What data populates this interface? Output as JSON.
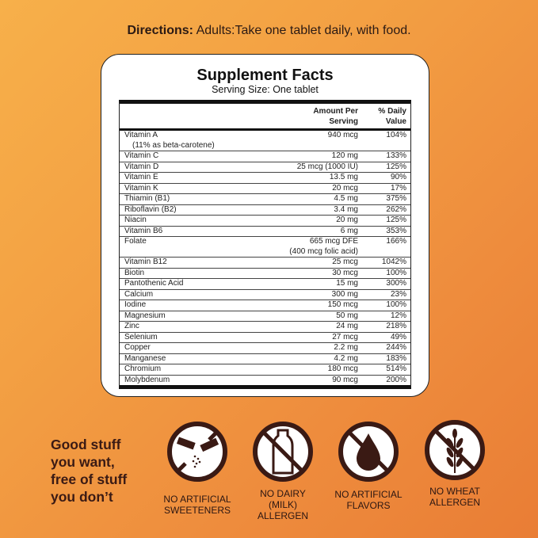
{
  "directions": {
    "label": "Directions:",
    "text": " Adults:Take one tablet daily, with food."
  },
  "facts": {
    "title": "Supplement Facts",
    "serving": "Serving Size: One tablet",
    "headers": {
      "amount_1": "Amount Per",
      "amount_2": "Serving",
      "dv_1": "% Daily",
      "dv_2": "Value"
    },
    "rows": [
      {
        "name": "Vitamin A",
        "sub": "(11% as beta-carotene)",
        "amount": "940 mcg",
        "dv": "104%"
      },
      {
        "name": "Vitamin C",
        "amount": "120 mg",
        "dv": "133%"
      },
      {
        "name": "Vitamin D",
        "amount": "25 mcg (1000 IU)",
        "dv": "125%"
      },
      {
        "name": "Vitamin E",
        "amount": "13.5 mg",
        "dv": "90%"
      },
      {
        "name": "Vitamin K",
        "amount": "20 mcg",
        "dv": "17%"
      },
      {
        "name": "Thiamin (B1)",
        "amount": "4.5 mg",
        "dv": "375%"
      },
      {
        "name": "Riboflavin (B2)",
        "amount": "3.4 mg",
        "dv": "262%"
      },
      {
        "name": "Niacin",
        "amount": "20 mg",
        "dv": "125%"
      },
      {
        "name": "Vitamin B6",
        "amount": "6 mg",
        "dv": "353%"
      },
      {
        "name": "Folate",
        "amount": "665 mcg DFE",
        "amount_sub": "(400 mcg folic acid)",
        "dv": "166%"
      },
      {
        "name": "Vitamin B12",
        "amount": "25 mcg",
        "dv": "1042%"
      },
      {
        "name": "Biotin",
        "amount": "30 mcg",
        "dv": "100%"
      },
      {
        "name": "Pantothenic Acid",
        "amount": "15 mg",
        "dv": "300%"
      },
      {
        "name": "Calcium",
        "amount": "300 mg",
        "dv": "23%"
      },
      {
        "name": "Iodine",
        "amount": "150 mcg",
        "dv": "100%"
      },
      {
        "name": "Magnesium",
        "amount": "50 mg",
        "dv": "12%"
      },
      {
        "name": "Zinc",
        "amount": "24 mg",
        "dv": "218%"
      },
      {
        "name": "Selenium",
        "amount": "27 mcg",
        "dv": "49%"
      },
      {
        "name": "Copper",
        "amount": "2.2 mg",
        "dv": "244%"
      },
      {
        "name": "Manganese",
        "amount": "4.2 mg",
        "dv": "183%"
      },
      {
        "name": "Chromium",
        "amount": "180 mcg",
        "dv": "514%"
      },
      {
        "name": "Molybdenum",
        "amount": "90 mcg",
        "dv": "200%"
      }
    ]
  },
  "tagline": [
    "Good stuff",
    "you want,",
    "free of stuff",
    "you don’t"
  ],
  "badges": [
    {
      "icon": "no-sweeteners-icon",
      "lines": [
        "NO ARTIFICIAL",
        "SWEETENERS"
      ]
    },
    {
      "icon": "no-dairy-icon",
      "lines": [
        "NO DAIRY",
        "(MILK)",
        "ALLERGEN"
      ]
    },
    {
      "icon": "no-flavors-icon",
      "lines": [
        "NO ARTIFICIAL",
        "FLAVORS"
      ]
    },
    {
      "icon": "no-wheat-icon",
      "lines": [
        "NO WHEAT",
        "ALLERGEN"
      ]
    }
  ],
  "colors": {
    "icon": "#3a1a14",
    "background": "#f0953f"
  }
}
